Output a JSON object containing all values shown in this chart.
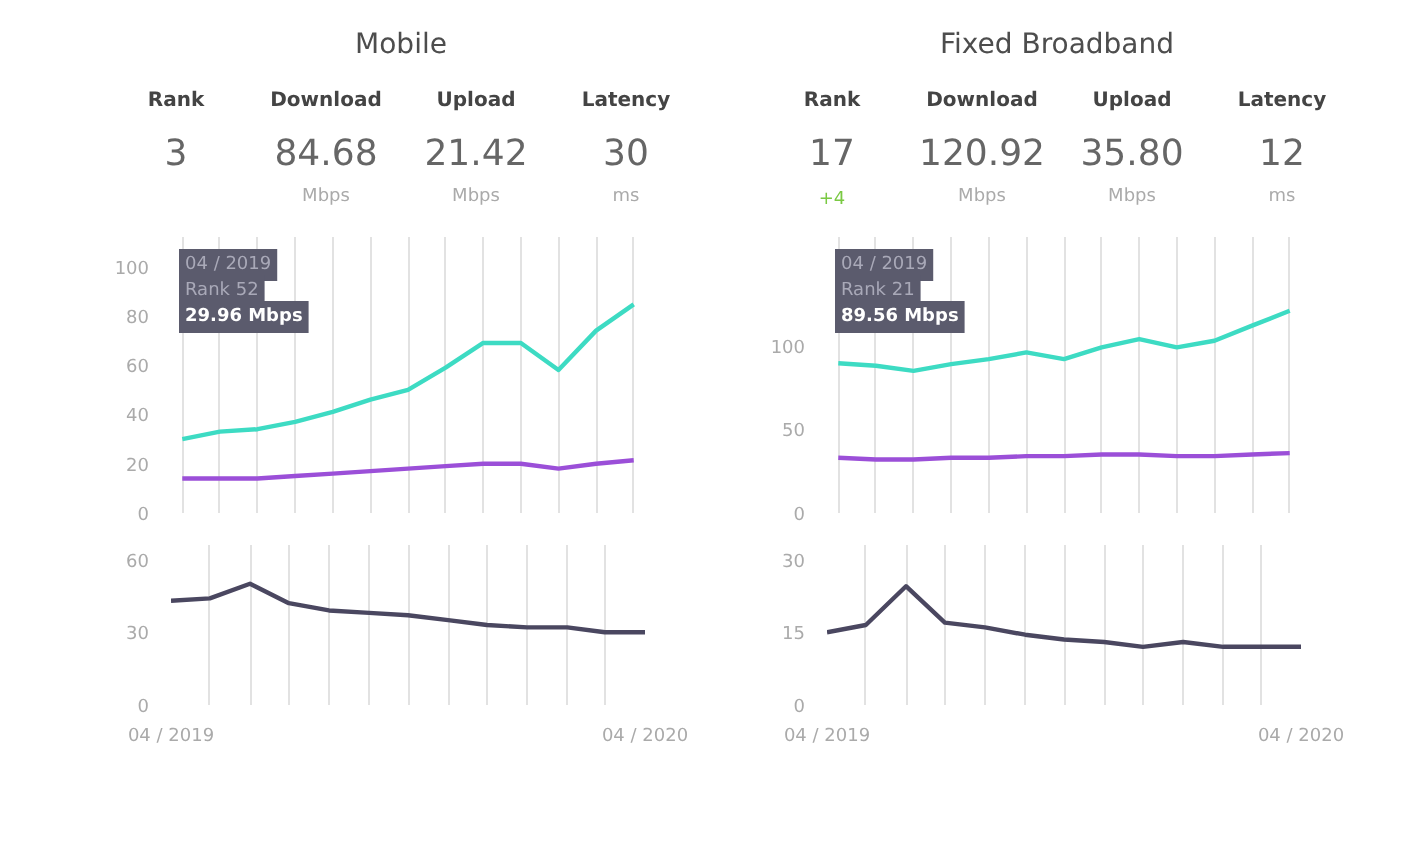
{
  "chart_data": [
    {
      "type": "other",
      "title": "Mobile",
      "categories": [
        "Rank",
        "Download",
        "Upload",
        "Latency"
      ],
      "values": [
        3,
        84.68,
        21.42,
        30
      ],
      "value_labels": [
        "3",
        "84.68",
        "21.42",
        "30"
      ],
      "annotations": [
        {
          "text": "Mbps",
          "x": "Download"
        },
        {
          "text": "Mbps",
          "x": "Upload"
        },
        {
          "text": "ms",
          "x": "Latency"
        }
      ]
    },
    {
      "type": "other",
      "title": "Fixed Broadband",
      "categories": [
        "Rank",
        "Download",
        "Upload",
        "Latency"
      ],
      "values": [
        17,
        120.92,
        35.8,
        12
      ],
      "value_labels": [
        "17",
        "120.92",
        "35.80",
        "12"
      ],
      "annotations": [
        {
          "text": "+4",
          "x": "Rank"
        },
        {
          "text": "Mbps",
          "x": "Download"
        },
        {
          "text": "Mbps",
          "x": "Upload"
        },
        {
          "text": "ms",
          "x": "Latency"
        }
      ]
    },
    {
      "type": "line",
      "categories": [
        null,
        null,
        null,
        null,
        null,
        null,
        null,
        null,
        null,
        null,
        null,
        null,
        null
      ],
      "series": [
        {
          "color": "#3ddbc3",
          "values": [
            29.96,
            33,
            34,
            37,
            41,
            46,
            50,
            59,
            69,
            69,
            58,
            74,
            84.68
          ]
        },
        {
          "color": "#9b4fd8",
          "values": [
            14,
            14,
            14,
            15,
            16,
            17,
            18,
            19,
            20,
            20,
            18,
            20,
            21.42
          ]
        }
      ],
      "ylim": [
        0,
        112
      ],
      "yticks": [
        0,
        20,
        40,
        60,
        80,
        100
      ],
      "grid": "x",
      "tick_labels": "y",
      "line_style": "solid",
      "annotations": [
        "04 / 2019\nRank 52\n29.96 Mbps"
      ]
    },
    {
      "type": "line",
      "categories": [
        null,
        null,
        null,
        null,
        null,
        null,
        null,
        null,
        null,
        null,
        null,
        null,
        null
      ],
      "series": [
        {
          "color": "#3ddbc3",
          "values": [
            89.56,
            88,
            85,
            89,
            92,
            96,
            92,
            99,
            104,
            99,
            103,
            112,
            120.92
          ]
        },
        {
          "color": "#9b4fd8",
          "values": [
            33,
            32,
            32,
            33,
            33,
            34,
            34,
            35,
            35,
            34,
            34,
            35,
            35.8
          ]
        }
      ],
      "ylim": [
        0,
        165
      ],
      "yticks": [
        0,
        50,
        100
      ],
      "grid": "x",
      "tick_labels": "y",
      "line_style": "solid",
      "annotations": [
        "04 / 2019\nRank 21\n89.56 Mbps"
      ]
    },
    {
      "type": "line",
      "x": [
        "2019-04",
        "2019-05",
        "2019-06",
        "2019-07",
        "2019-08",
        "2019-09",
        "2019-10",
        "2019-11",
        "2019-12",
        "2020-01",
        "2020-02",
        "2020-03",
        "2020-04"
      ],
      "series": [
        {
          "color": "#4a4760",
          "values": [
            43,
            44,
            50,
            42,
            39,
            38,
            37,
            35,
            33,
            32,
            32,
            30,
            30
          ]
        }
      ],
      "xlim": [
        "2019-04",
        "2020-04"
      ],
      "xticks": [
        {
          "value": "2019-04",
          "label": "04 / 2019"
        },
        {
          "value": "2019-05",
          "label": null
        },
        {
          "value": "2019-06",
          "label": null
        },
        {
          "value": "2019-07",
          "label": null
        },
        {
          "value": "2019-08",
          "label": null
        },
        {
          "value": "2019-09",
          "label": null
        },
        {
          "value": "2019-10",
          "label": null
        },
        {
          "value": "2019-11",
          "label": null
        },
        {
          "value": "2019-12",
          "label": null
        },
        {
          "value": "2020-01",
          "label": null
        },
        {
          "value": "2020-02",
          "label": null
        },
        {
          "value": "2020-03",
          "label": null
        },
        {
          "value": "2020-04",
          "label": "04 / 2020"
        }
      ],
      "ylim": [
        0,
        66
      ],
      "yticks": [
        0,
        30,
        60
      ],
      "grid": "x",
      "line_style": "solid"
    },
    {
      "type": "line",
      "x": [
        "2019-04",
        "2019-05",
        "2019-06",
        "2019-07",
        "2019-08",
        "2019-09",
        "2019-10",
        "2019-11",
        "2019-12",
        "2020-01",
        "2020-02",
        "2020-03",
        "2020-04"
      ],
      "series": [
        {
          "color": "#4a4760",
          "values": [
            15,
            16.5,
            24.5,
            17,
            16,
            14.5,
            13.5,
            13,
            12,
            13,
            12,
            12,
            12
          ]
        }
      ],
      "xlim": [
        "2019-04",
        "2020-04"
      ],
      "xticks": [
        {
          "value": "2019-04",
          "label": "04 / 2019"
        },
        {
          "value": "2019-05",
          "label": null
        },
        {
          "value": "2019-06",
          "label": null
        },
        {
          "value": "2019-07",
          "label": null
        },
        {
          "value": "2019-08",
          "label": null
        },
        {
          "value": "2019-09",
          "label": null
        },
        {
          "value": "2019-10",
          "label": null
        },
        {
          "value": "2019-11",
          "label": null
        },
        {
          "value": "2019-12",
          "label": null
        },
        {
          "value": "2020-01",
          "label": null
        },
        {
          "value": "2020-02",
          "label": null
        },
        {
          "value": "2020-03",
          "label": null
        },
        {
          "value": "2020-04",
          "label": "04 / 2020"
        }
      ],
      "ylim": [
        0,
        33
      ],
      "yticks": [
        0,
        15,
        30
      ],
      "grid": "x",
      "line_style": "solid"
    }
  ]
}
